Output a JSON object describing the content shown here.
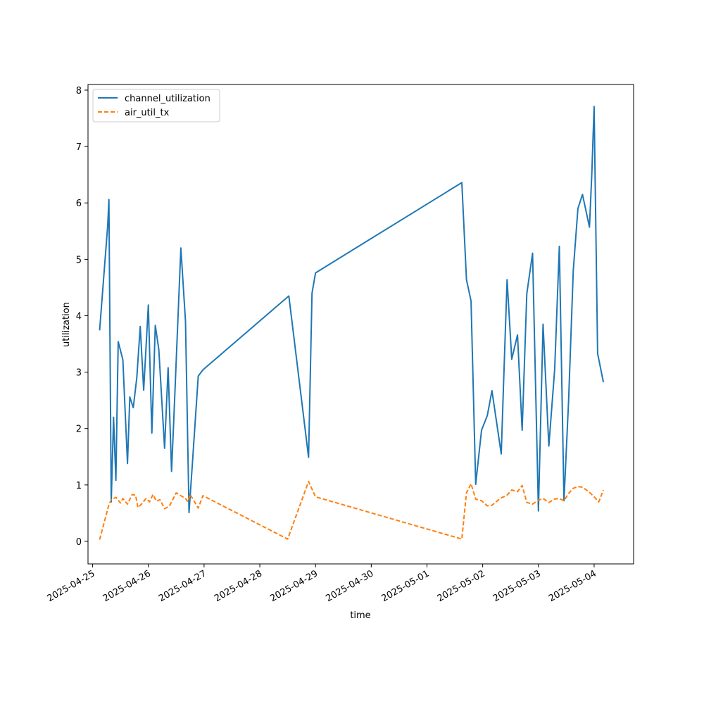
{
  "chart_data": {
    "type": "line",
    "title": "",
    "xlabel": "time",
    "ylabel": "utilization",
    "x_type": "datetime",
    "xlim": [
      "2025-04-24T22:00",
      "2025-05-04T17:00"
    ],
    "ylim": [
      -0.4,
      8.1
    ],
    "x_ticks": [
      "2025-04-25",
      "2025-04-26",
      "2025-04-27",
      "2025-04-28",
      "2025-04-29",
      "2025-04-30",
      "2025-05-01",
      "2025-05-02",
      "2025-05-03",
      "2025-05-04"
    ],
    "y_ticks": [
      0,
      1,
      2,
      3,
      4,
      5,
      6,
      7,
      8
    ],
    "grid": false,
    "legend_position": "upper-left",
    "series": [
      {
        "name": "channel_utilization",
        "color": "#1f77b4",
        "style": "solid",
        "points": [
          [
            "2025-04-25T03:00",
            3.74
          ],
          [
            "2025-04-25T06:30",
            5.6
          ],
          [
            "2025-04-25T07:00",
            6.06
          ],
          [
            "2025-04-25T08:00",
            0.7
          ],
          [
            "2025-04-25T09:00",
            2.2
          ],
          [
            "2025-04-25T10:00",
            1.08
          ],
          [
            "2025-04-25T11:00",
            3.54
          ],
          [
            "2025-04-25T13:00",
            3.22
          ],
          [
            "2025-04-25T15:00",
            1.38
          ],
          [
            "2025-04-25T16:00",
            2.56
          ],
          [
            "2025-04-25T17:30",
            2.37
          ],
          [
            "2025-04-25T19:00",
            2.9
          ],
          [
            "2025-04-25T20:30",
            3.81
          ],
          [
            "2025-04-25T22:00",
            2.68
          ],
          [
            "2025-04-26T00:00",
            4.19
          ],
          [
            "2025-04-26T01:30",
            1.92
          ],
          [
            "2025-04-26T03:00",
            3.83
          ],
          [
            "2025-04-26T04:30",
            3.4
          ],
          [
            "2025-04-26T07:00",
            1.65
          ],
          [
            "2025-04-26T08:30",
            3.08
          ],
          [
            "2025-04-26T10:00",
            1.24
          ],
          [
            "2025-04-26T11:00",
            2.2
          ],
          [
            "2025-04-26T14:00",
            5.2
          ],
          [
            "2025-04-26T16:00",
            3.9
          ],
          [
            "2025-04-26T17:30",
            0.51
          ],
          [
            "2025-04-26T19:00",
            1.4
          ],
          [
            "2025-04-26T21:30",
            2.93
          ],
          [
            "2025-04-26T23:30",
            3.04
          ],
          [
            "2025-04-28T12:30",
            4.35
          ],
          [
            "2025-04-28T21:00",
            1.49
          ],
          [
            "2025-04-28T22:30",
            4.4
          ],
          [
            "2025-04-29T00:00",
            4.76
          ],
          [
            "2025-05-01T15:00",
            6.36
          ],
          [
            "2025-05-01T17:00",
            4.64
          ],
          [
            "2025-05-01T19:00",
            4.26
          ],
          [
            "2025-05-01T21:00",
            1.01
          ],
          [
            "2025-05-01T23:30",
            1.97
          ],
          [
            "2025-05-02T02:00",
            2.23
          ],
          [
            "2025-05-02T04:00",
            2.67
          ],
          [
            "2025-05-02T08:00",
            1.55
          ],
          [
            "2025-05-02T09:00",
            2.8
          ],
          [
            "2025-05-02T10:30",
            4.64
          ],
          [
            "2025-05-02T12:30",
            3.23
          ],
          [
            "2025-05-02T15:00",
            3.66
          ],
          [
            "2025-05-02T17:00",
            1.97
          ],
          [
            "2025-05-02T19:00",
            4.39
          ],
          [
            "2025-05-02T21:30",
            5.11
          ],
          [
            "2025-05-03T00:00",
            0.54
          ],
          [
            "2025-05-03T02:00",
            3.85
          ],
          [
            "2025-05-03T04:30",
            1.69
          ],
          [
            "2025-05-03T07:00",
            3.05
          ],
          [
            "2025-05-03T09:00",
            5.23
          ],
          [
            "2025-05-03T11:00",
            0.72
          ],
          [
            "2025-05-03T13:00",
            2.5
          ],
          [
            "2025-05-03T15:00",
            4.8
          ],
          [
            "2025-05-03T17:00",
            5.9
          ],
          [
            "2025-05-03T19:00",
            6.15
          ],
          [
            "2025-05-03T22:00",
            5.57
          ],
          [
            "2025-05-03T23:00",
            6.5
          ],
          [
            "2025-05-04T00:00",
            7.71
          ],
          [
            "2025-05-04T01:30",
            3.33
          ],
          [
            "2025-05-04T04:00",
            2.82
          ]
        ]
      },
      {
        "name": "air_util_tx",
        "color": "#ff7f0e",
        "style": "dashed",
        "points": [
          [
            "2025-04-25T03:00",
            0.03
          ],
          [
            "2025-04-25T07:00",
            0.65
          ],
          [
            "2025-04-25T08:00",
            0.74
          ],
          [
            "2025-04-25T10:00",
            0.78
          ],
          [
            "2025-04-25T12:00",
            0.68
          ],
          [
            "2025-04-25T13:00",
            0.76
          ],
          [
            "2025-04-25T15:00",
            0.66
          ],
          [
            "2025-04-25T17:00",
            0.83
          ],
          [
            "2025-04-25T18:30",
            0.82
          ],
          [
            "2025-04-25T19:30",
            0.6
          ],
          [
            "2025-04-25T21:00",
            0.66
          ],
          [
            "2025-04-25T23:00",
            0.76
          ],
          [
            "2025-04-26T00:30",
            0.7
          ],
          [
            "2025-04-26T02:00",
            0.83
          ],
          [
            "2025-04-26T03:30",
            0.71
          ],
          [
            "2025-04-26T05:00",
            0.74
          ],
          [
            "2025-04-26T07:00",
            0.58
          ],
          [
            "2025-04-26T09:00",
            0.62
          ],
          [
            "2025-04-26T12:00",
            0.86
          ],
          [
            "2025-04-26T16:00",
            0.76
          ],
          [
            "2025-04-26T17:00",
            0.7
          ],
          [
            "2025-04-26T18:00",
            0.83
          ],
          [
            "2025-04-26T21:30",
            0.59
          ],
          [
            "2025-04-26T23:30",
            0.81
          ],
          [
            "2025-04-28T12:00",
            0.04
          ],
          [
            "2025-04-28T21:00",
            1.06
          ],
          [
            "2025-04-29T00:00",
            0.79
          ],
          [
            "2025-05-01T15:00",
            0.04
          ],
          [
            "2025-05-01T17:00",
            0.86
          ],
          [
            "2025-05-01T19:00",
            1.02
          ],
          [
            "2025-05-01T21:00",
            0.75
          ],
          [
            "2025-05-01T23:30",
            0.72
          ],
          [
            "2025-05-02T02:00",
            0.63
          ],
          [
            "2025-05-02T04:00",
            0.64
          ],
          [
            "2025-05-02T07:30",
            0.76
          ],
          [
            "2025-05-02T10:30",
            0.82
          ],
          [
            "2025-05-02T12:30",
            0.91
          ],
          [
            "2025-05-02T15:00",
            0.88
          ],
          [
            "2025-05-02T17:00",
            0.99
          ],
          [
            "2025-05-02T19:00",
            0.69
          ],
          [
            "2025-05-02T21:30",
            0.66
          ],
          [
            "2025-05-03T00:00",
            0.73
          ],
          [
            "2025-05-03T02:00",
            0.76
          ],
          [
            "2025-05-03T04:30",
            0.69
          ],
          [
            "2025-05-03T07:00",
            0.75
          ],
          [
            "2025-05-03T09:00",
            0.76
          ],
          [
            "2025-05-03T11:00",
            0.72
          ],
          [
            "2025-05-03T13:00",
            0.85
          ],
          [
            "2025-05-03T15:00",
            0.94
          ],
          [
            "2025-05-03T17:00",
            0.97
          ],
          [
            "2025-05-03T19:00",
            0.96
          ],
          [
            "2025-05-03T22:00",
            0.87
          ],
          [
            "2025-05-04T00:00",
            0.79
          ],
          [
            "2025-05-04T02:00",
            0.7
          ],
          [
            "2025-05-04T04:00",
            0.91
          ]
        ]
      }
    ]
  }
}
